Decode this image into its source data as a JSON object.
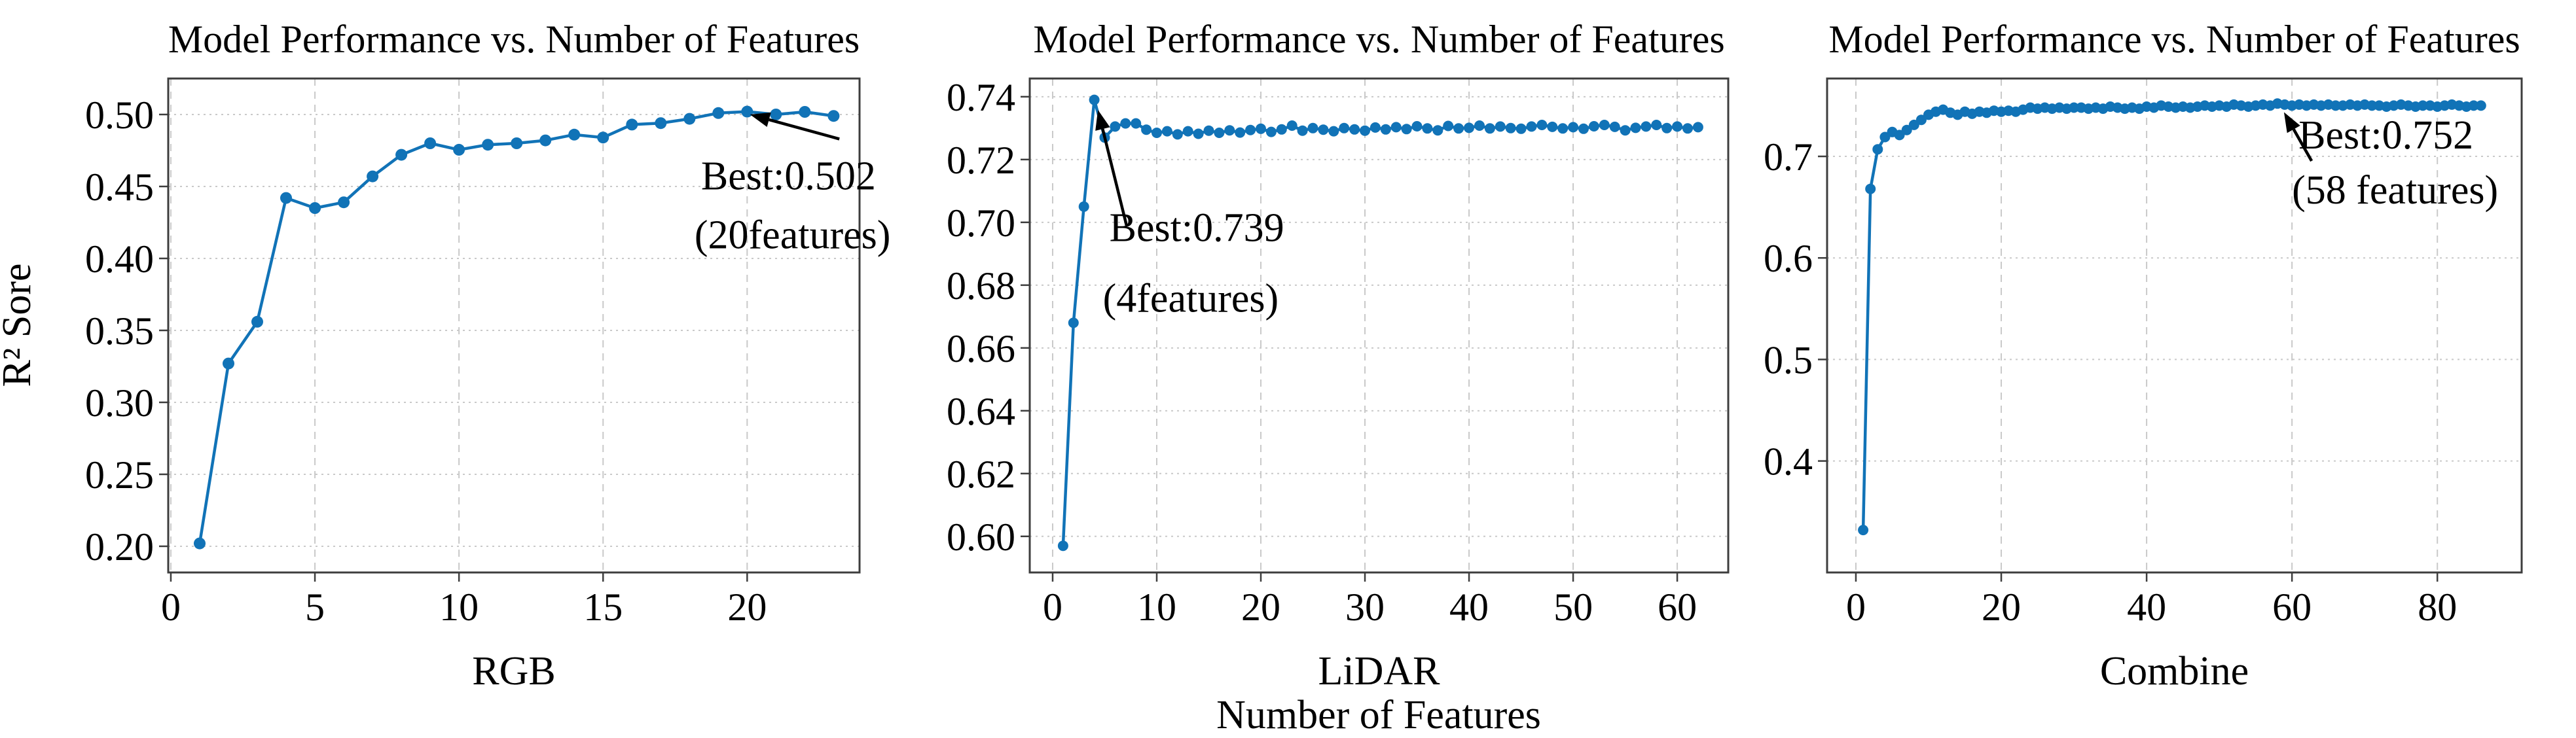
{
  "figure": {
    "shared_xlabel": "Number of Features",
    "line_color": "#1173b7",
    "grid_color": "#c9c9c9",
    "spine_color": "#3d3d3d",
    "text_color": "#000000",
    "background": "#ffffff"
  },
  "chart_data": [
    {
      "type": "line",
      "title": "Model Performance vs. Number of Features",
      "xlabel": "RGB",
      "ylabel": "R² Sore",
      "x_start": 1,
      "x_step": 1,
      "y": [
        0.202,
        0.327,
        0.356,
        0.442,
        0.435,
        0.439,
        0.457,
        0.472,
        0.48,
        0.4755,
        0.479,
        0.48,
        0.482,
        0.486,
        0.484,
        0.493,
        0.494,
        0.497,
        0.501,
        0.502,
        0.5,
        0.5018,
        0.499
      ],
      "xlim": [
        -0.09,
        23.9
      ],
      "ylim": [
        0.1818,
        0.525
      ],
      "xticks": [
        0,
        5,
        10,
        15,
        20
      ],
      "yticks": [
        0.2,
        0.25,
        0.3,
        0.35,
        0.4,
        0.45,
        0.5
      ],
      "ytick_labels": [
        "0.20",
        "0.25",
        "0.30",
        "0.35",
        "0.40",
        "0.45",
        "0.50"
      ],
      "grid": true,
      "annotation": {
        "lines": [
          "Best:0.502",
          "(20features)"
        ],
        "best_value": 0.502,
        "best_x": 20,
        "arrow_tip": [
          20.1,
          0.5
        ],
        "arrow_tail": [
          23.2,
          0.483
        ],
        "text_pos": [
          18.4,
          0.448
        ]
      }
    },
    {
      "type": "line",
      "title": "Model Performance vs. Number of Features",
      "xlabel": "LiDAR",
      "ylabel": "",
      "x_start": 1,
      "x_step": 1,
      "y": [
        0.597,
        0.668,
        0.705,
        0.739,
        0.727,
        0.7305,
        0.7315,
        0.7315,
        0.7295,
        0.7285,
        0.729,
        0.728,
        0.729,
        0.7282,
        0.7292,
        0.7285,
        0.7293,
        0.7286,
        0.7294,
        0.7298,
        0.7288,
        0.7296,
        0.7308,
        0.7292,
        0.73,
        0.7295,
        0.729,
        0.73,
        0.7296,
        0.7292,
        0.7302,
        0.7296,
        0.7303,
        0.7297,
        0.7306,
        0.7299,
        0.7293,
        0.7307,
        0.7299,
        0.7301,
        0.7308,
        0.7299,
        0.7305,
        0.73,
        0.7298,
        0.7305,
        0.731,
        0.7304,
        0.7299,
        0.7303,
        0.7298,
        0.7306,
        0.731,
        0.7304,
        0.7293,
        0.7301,
        0.7305,
        0.731,
        0.73,
        0.7305,
        0.7299,
        0.7303
      ],
      "xlim": [
        -2.2,
        64.9
      ],
      "ylim": [
        0.5885,
        0.7458
      ],
      "xticks": [
        0,
        10,
        20,
        30,
        40,
        50,
        60
      ],
      "yticks": [
        0.6,
        0.62,
        0.64,
        0.66,
        0.68,
        0.7,
        0.72,
        0.74
      ],
      "ytick_labels": [
        "0.60",
        "0.62",
        "0.64",
        "0.66",
        "0.68",
        "0.70",
        "0.72",
        "0.74"
      ],
      "grid": true,
      "annotation": {
        "lines": [
          "Best:0.739",
          "(4features)"
        ],
        "best_value": 0.739,
        "best_x": 4,
        "arrow_tip": [
          4.35,
          0.7358
        ],
        "arrow_tail": [
          7.1,
          0.699
        ],
        "text_pos": [
          5.45,
          0.694
        ]
      }
    },
    {
      "type": "line",
      "title": "Model Performance vs. Number of Features",
      "xlabel": "Combine",
      "ylabel": "",
      "x_start": 1,
      "x_step": 1,
      "y": [
        0.332,
        0.668,
        0.707,
        0.719,
        0.724,
        0.721,
        0.726,
        0.731,
        0.736,
        0.741,
        0.744,
        0.746,
        0.743,
        0.741,
        0.744,
        0.742,
        0.744,
        0.743,
        0.745,
        0.744,
        0.745,
        0.744,
        0.746,
        0.748,
        0.747,
        0.748,
        0.747,
        0.748,
        0.747,
        0.748,
        0.748,
        0.747,
        0.748,
        0.747,
        0.749,
        0.748,
        0.747,
        0.748,
        0.747,
        0.749,
        0.748,
        0.75,
        0.749,
        0.748,
        0.749,
        0.748,
        0.749,
        0.75,
        0.749,
        0.75,
        0.749,
        0.751,
        0.75,
        0.749,
        0.75,
        0.751,
        0.75,
        0.752,
        0.751,
        0.75,
        0.751,
        0.75,
        0.751,
        0.75,
        0.751,
        0.75,
        0.75,
        0.751,
        0.75,
        0.751,
        0.75,
        0.75,
        0.749,
        0.75,
        0.751,
        0.75,
        0.749,
        0.75,
        0.75,
        0.749,
        0.75,
        0.751,
        0.75,
        0.749,
        0.75,
        0.75
      ],
      "xlim": [
        -3.96,
        91.6
      ],
      "ylim": [
        0.2902,
        0.7767
      ],
      "xticks": [
        0,
        20,
        40,
        60,
        80
      ],
      "yticks": [
        0.4,
        0.5,
        0.6,
        0.7
      ],
      "ytick_labels": [
        "0.4",
        "0.5",
        "0.6",
        "0.7"
      ],
      "grid": true,
      "annotation": {
        "lines": [
          "Best:0.752",
          "(58 features)"
        ],
        "best_value": 0.752,
        "best_x": 58,
        "arrow_tip": [
          58.9,
          0.7435
        ],
        "arrow_tail": [
          62.7,
          0.6955
        ],
        "text_pos": [
          60.9,
          0.7076
        ]
      }
    }
  ]
}
